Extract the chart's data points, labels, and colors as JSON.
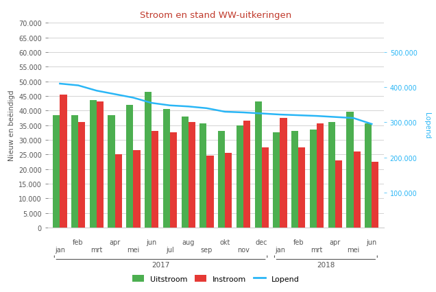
{
  "title": "Stroom en stand WW-uitkeringen",
  "title_color": "#c0392b",
  "ylabel_left": "Nieuw en beëindigd",
  "ylabel_right": "Lopend",
  "months_2017": [
    "jan",
    "feb",
    "mrt",
    "apr",
    "mei",
    "jun",
    "jul",
    "aug",
    "sep",
    "okt",
    "nov",
    "dec"
  ],
  "months_2018": [
    "jan",
    "feb",
    "mrt",
    "apr",
    "mei",
    "jun"
  ],
  "uitstroom": [
    38500,
    38500,
    43500,
    38500,
    42000,
    46500,
    40500,
    38000,
    35500,
    33000,
    35000,
    43000,
    32500,
    33000,
    33500,
    36000,
    39500,
    35500
  ],
  "instroom": [
    45500,
    36000,
    43000,
    25000,
    26500,
    33000,
    32500,
    36000,
    24500,
    25500,
    36500,
    27500,
    37500,
    27500,
    35500,
    23000,
    26000,
    22500
  ],
  "lopend": [
    410000,
    405000,
    390000,
    380000,
    370000,
    355000,
    348000,
    345000,
    340000,
    330000,
    328000,
    325000,
    322000,
    320000,
    318000,
    315000,
    312000,
    295000
  ],
  "left_ylim": [
    0,
    70000
  ],
  "right_ylim": [
    0,
    583333
  ],
  "left_yticks": [
    0,
    5000,
    10000,
    15000,
    20000,
    25000,
    30000,
    35000,
    40000,
    45000,
    50000,
    55000,
    60000,
    65000,
    70000
  ],
  "right_yticks": [
    100000,
    200000,
    300000,
    400000,
    500000
  ],
  "color_uitstroom": "#4caf50",
  "color_instroom": "#e53935",
  "color_lopend": "#29b6f6",
  "bar_width": 0.38,
  "background_color": "#ffffff",
  "grid_color": "#cccccc",
  "year_labels": [
    "2017",
    "2018"
  ],
  "tick_color": "#555555",
  "axis_label_color": "#29b6f6"
}
